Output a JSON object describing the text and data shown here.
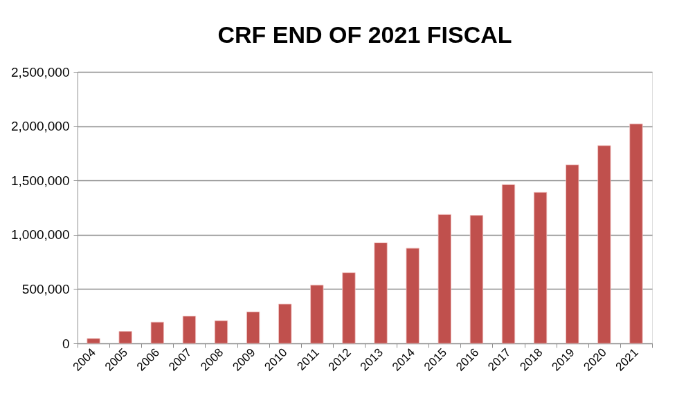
{
  "chart_data": {
    "type": "bar",
    "title": "CRF END OF 2021 FISCAL",
    "categories": [
      "2004",
      "2005",
      "2006",
      "2007",
      "2008",
      "2009",
      "2010",
      "2011",
      "2012",
      "2013",
      "2014",
      "2015",
      "2016",
      "2017",
      "2018",
      "2019",
      "2020",
      "2021"
    ],
    "values": [
      45000,
      111000,
      196000,
      251000,
      209000,
      290000,
      362000,
      536000,
      651000,
      926000,
      877000,
      1187000,
      1179000,
      1462000,
      1391000,
      1643000,
      1821000,
      2021000
    ],
    "color": "#c0504d",
    "ylim": [
      0,
      2500000
    ],
    "yticks": [
      0,
      {
        "value": 500000,
        "label": "500,000"
      },
      {
        "value": 1000000,
        "label": "1,000,000"
      },
      {
        "value": 1500000,
        "label": "1,500,000"
      },
      {
        "value": 2000000,
        "label": "2,000,000"
      },
      {
        "value": 2500000,
        "label": "2,500,000"
      }
    ],
    "grid": "y"
  }
}
